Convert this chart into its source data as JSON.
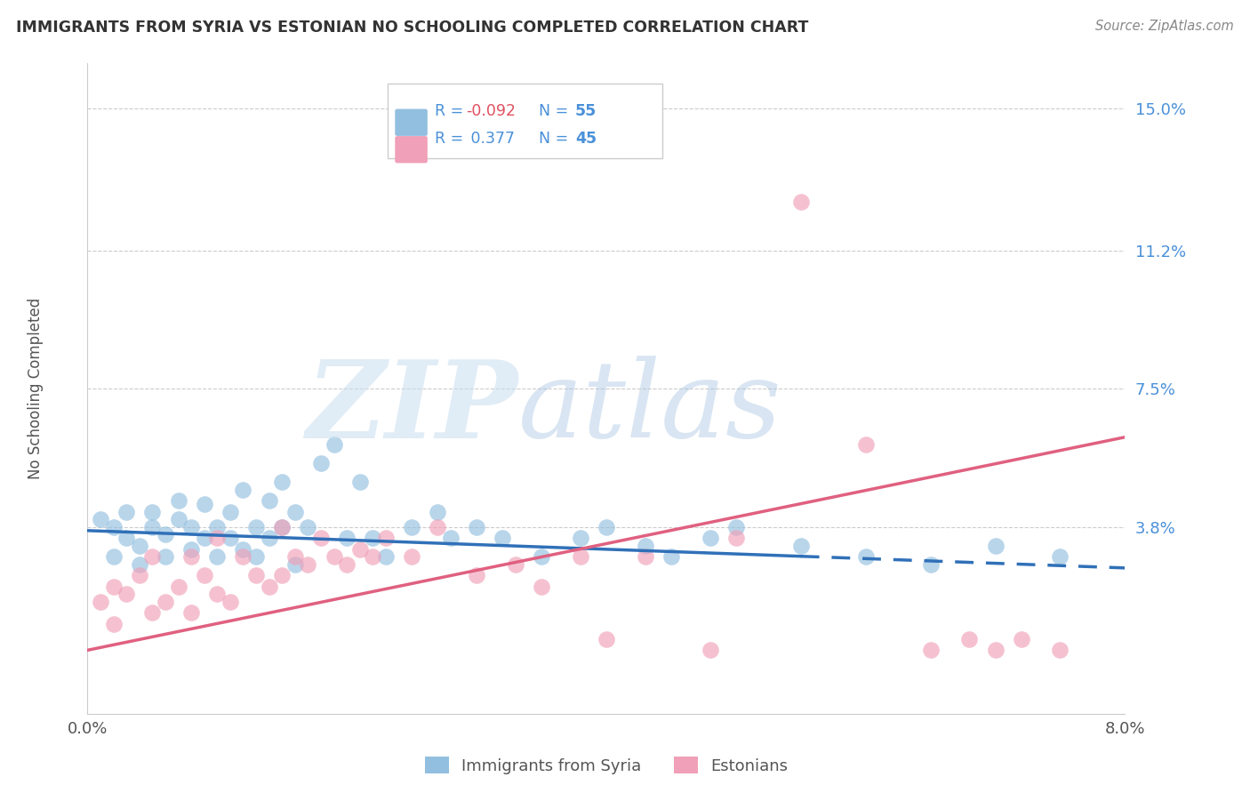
{
  "title": "IMMIGRANTS FROM SYRIA VS ESTONIAN NO SCHOOLING COMPLETED CORRELATION CHART",
  "source": "Source: ZipAtlas.com",
  "ylabel": "No Schooling Completed",
  "ytick_labels": [
    "15.0%",
    "11.2%",
    "7.5%",
    "3.8%"
  ],
  "ytick_values": [
    0.15,
    0.112,
    0.075,
    0.038
  ],
  "xmin": 0.0,
  "xmax": 0.08,
  "ymin": -0.012,
  "ymax": 0.162,
  "blue_color": "#92bfe0",
  "pink_color": "#f0a0b8",
  "blue_line_color": "#3070b8",
  "pink_line_color": "#e06080",
  "blue_line_solid_end": 0.055,
  "blue_line_y_at_0": 0.037,
  "blue_line_y_at_08": 0.027,
  "pink_line_y_at_0": 0.005,
  "pink_line_y_at_08": 0.062,
  "blue_scatter_x": [
    0.001,
    0.002,
    0.002,
    0.003,
    0.003,
    0.004,
    0.004,
    0.005,
    0.005,
    0.006,
    0.006,
    0.007,
    0.007,
    0.008,
    0.008,
    0.009,
    0.009,
    0.01,
    0.01,
    0.011,
    0.011,
    0.012,
    0.012,
    0.013,
    0.013,
    0.014,
    0.014,
    0.015,
    0.015,
    0.016,
    0.016,
    0.017,
    0.018,
    0.019,
    0.02,
    0.021,
    0.022,
    0.023,
    0.025,
    0.027,
    0.028,
    0.03,
    0.032,
    0.035,
    0.038,
    0.04,
    0.043,
    0.045,
    0.048,
    0.05,
    0.055,
    0.06,
    0.065,
    0.07,
    0.075
  ],
  "blue_scatter_y": [
    0.04,
    0.038,
    0.03,
    0.042,
    0.035,
    0.033,
    0.028,
    0.038,
    0.042,
    0.036,
    0.03,
    0.04,
    0.045,
    0.038,
    0.032,
    0.035,
    0.044,
    0.038,
    0.03,
    0.042,
    0.035,
    0.048,
    0.032,
    0.038,
    0.03,
    0.045,
    0.035,
    0.05,
    0.038,
    0.042,
    0.028,
    0.038,
    0.055,
    0.06,
    0.035,
    0.05,
    0.035,
    0.03,
    0.038,
    0.042,
    0.035,
    0.038,
    0.035,
    0.03,
    0.035,
    0.038,
    0.033,
    0.03,
    0.035,
    0.038,
    0.033,
    0.03,
    0.028,
    0.033,
    0.03
  ],
  "pink_scatter_x": [
    0.001,
    0.002,
    0.002,
    0.003,
    0.004,
    0.005,
    0.005,
    0.006,
    0.007,
    0.008,
    0.008,
    0.009,
    0.01,
    0.01,
    0.011,
    0.012,
    0.013,
    0.014,
    0.015,
    0.015,
    0.016,
    0.017,
    0.018,
    0.019,
    0.02,
    0.021,
    0.022,
    0.023,
    0.025,
    0.027,
    0.03,
    0.033,
    0.035,
    0.038,
    0.04,
    0.043,
    0.048,
    0.05,
    0.055,
    0.06,
    0.065,
    0.068,
    0.07,
    0.072,
    0.075
  ],
  "pink_scatter_y": [
    0.018,
    0.022,
    0.012,
    0.02,
    0.025,
    0.015,
    0.03,
    0.018,
    0.022,
    0.03,
    0.015,
    0.025,
    0.02,
    0.035,
    0.018,
    0.03,
    0.025,
    0.022,
    0.038,
    0.025,
    0.03,
    0.028,
    0.035,
    0.03,
    0.028,
    0.032,
    0.03,
    0.035,
    0.03,
    0.038,
    0.025,
    0.028,
    0.022,
    0.03,
    0.008,
    0.03,
    0.005,
    0.035,
    0.125,
    0.06,
    0.005,
    0.008,
    0.005,
    0.008,
    0.005
  ],
  "legend_r1": "R = -0.092",
  "legend_n1": "N = 55",
  "legend_r2": "R =  0.377",
  "legend_n2": "N = 45",
  "legend_color": "#4a90d9",
  "legend_gray": "#555555"
}
